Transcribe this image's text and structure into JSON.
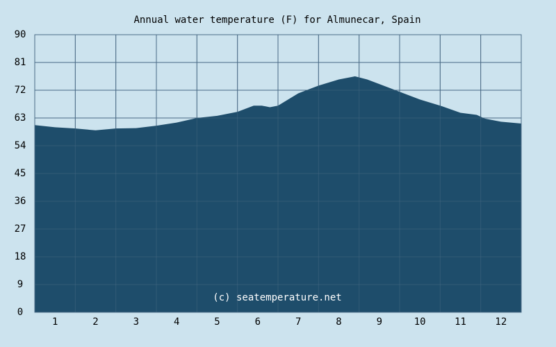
{
  "chart_data": {
    "type": "area",
    "title": "Annual water temperature (F) for Almunecar, Spain",
    "xlabel": "",
    "ylabel": "",
    "x_range": [
      0.5,
      12.5
    ],
    "ylim": [
      0,
      90
    ],
    "y_ticks": [
      0,
      9,
      18,
      27,
      36,
      45,
      54,
      63,
      72,
      81,
      90
    ],
    "x_ticks": [
      {
        "value": 1,
        "label": "1"
      },
      {
        "value": 2,
        "label": "2"
      },
      {
        "value": 3,
        "label": "3"
      },
      {
        "value": 4,
        "label": "4"
      },
      {
        "value": 5,
        "label": "5"
      },
      {
        "value": 6,
        "label": "6"
      },
      {
        "value": 7,
        "label": "7"
      },
      {
        "value": 8,
        "label": "8"
      },
      {
        "value": 9,
        "label": "9"
      },
      {
        "value": 10,
        "label": "10"
      },
      {
        "value": 11,
        "label": "11"
      },
      {
        "value": 12,
        "label": "12"
      }
    ],
    "grid": true,
    "series": [
      {
        "x": [
          0.5,
          1.0,
          1.5,
          2.0,
          2.5,
          3.0,
          3.5,
          4.0,
          4.5,
          5.0,
          5.5,
          5.9,
          6.1,
          6.3,
          6.5,
          7.0,
          7.5,
          8.0,
          8.4,
          8.7,
          9.0,
          9.5,
          10.0,
          10.5,
          11.0,
          11.4,
          11.6,
          12.0,
          12.5
        ],
        "y": [
          60.7,
          60.0,
          59.6,
          59.0,
          59.6,
          59.7,
          60.5,
          61.5,
          63.0,
          63.7,
          65.0,
          67.0,
          67.0,
          66.5,
          67.0,
          71.0,
          73.5,
          75.5,
          76.5,
          75.5,
          74.0,
          71.5,
          69.0,
          67.0,
          64.7,
          64.0,
          62.8,
          61.8,
          61.2
        ]
      }
    ],
    "colors": {
      "background": "#cce3ee",
      "fill": "#1e4d6b",
      "grid": "#4a6b85"
    },
    "watermark": "(c) seatemperature.net"
  }
}
